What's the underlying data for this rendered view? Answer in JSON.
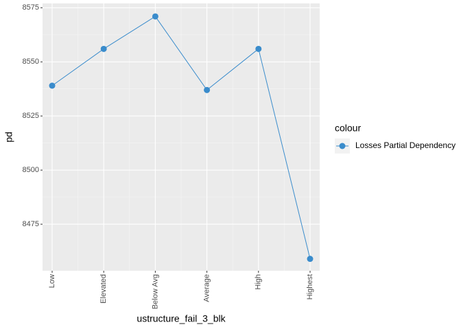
{
  "chart_data": {
    "type": "line",
    "x_label": "ustructure_fail_3_blk",
    "y_label": "pd",
    "categories": [
      "Low",
      "Elevated",
      "Below Avg",
      "Average",
      "High",
      "Highest"
    ],
    "series": [
      {
        "name": "Losses Partial Dependency",
        "color": "#3a8ccc",
        "values": [
          8539,
          8556,
          8571,
          8537,
          8556,
          8459
        ]
      }
    ],
    "ylim": [
      8453.5,
      8577
    ],
    "yticks": [
      8475,
      8500,
      8525,
      8550,
      8575
    ],
    "grid": true,
    "legend_title": "colour",
    "legend_position": "right"
  }
}
